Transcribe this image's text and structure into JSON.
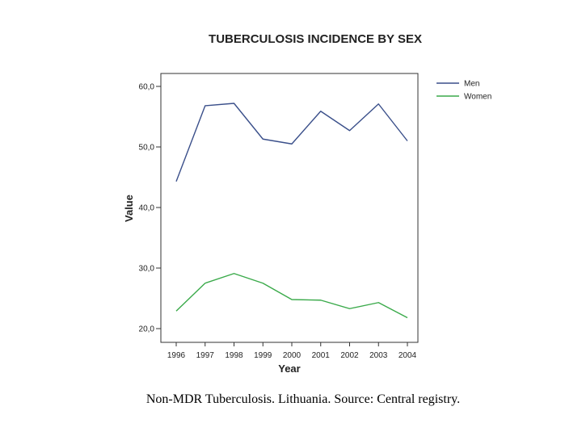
{
  "chart_data": {
    "type": "line",
    "title": "TUBERCULOSIS INCIDENCE BY SEX",
    "xlabel": "Year",
    "ylabel": "Value",
    "categories": [
      "1996",
      "1997",
      "1998",
      "1999",
      "2000",
      "2001",
      "2002",
      "2003",
      "2004"
    ],
    "ylim": [
      18,
      62
    ],
    "yticks": [
      20,
      30,
      40,
      50,
      60
    ],
    "ytick_labels": [
      "20,0",
      "30,0",
      "40,0",
      "50,0",
      "60,0"
    ],
    "grid": false,
    "legend_position": "top-right-outside",
    "series": [
      {
        "name": "Men",
        "color": "#3a4f8a",
        "values": [
          44.3,
          56.8,
          57.2,
          51.3,
          50.5,
          55.9,
          52.7,
          57.1,
          51.0
        ]
      },
      {
        "name": "Women",
        "color": "#3aaa4a",
        "values": [
          22.9,
          27.5,
          29.1,
          27.5,
          24.8,
          24.7,
          23.3,
          24.3,
          21.8
        ]
      }
    ]
  },
  "caption": "Non-MDR Tuberculosis. Lithuania. Source: Central registry."
}
